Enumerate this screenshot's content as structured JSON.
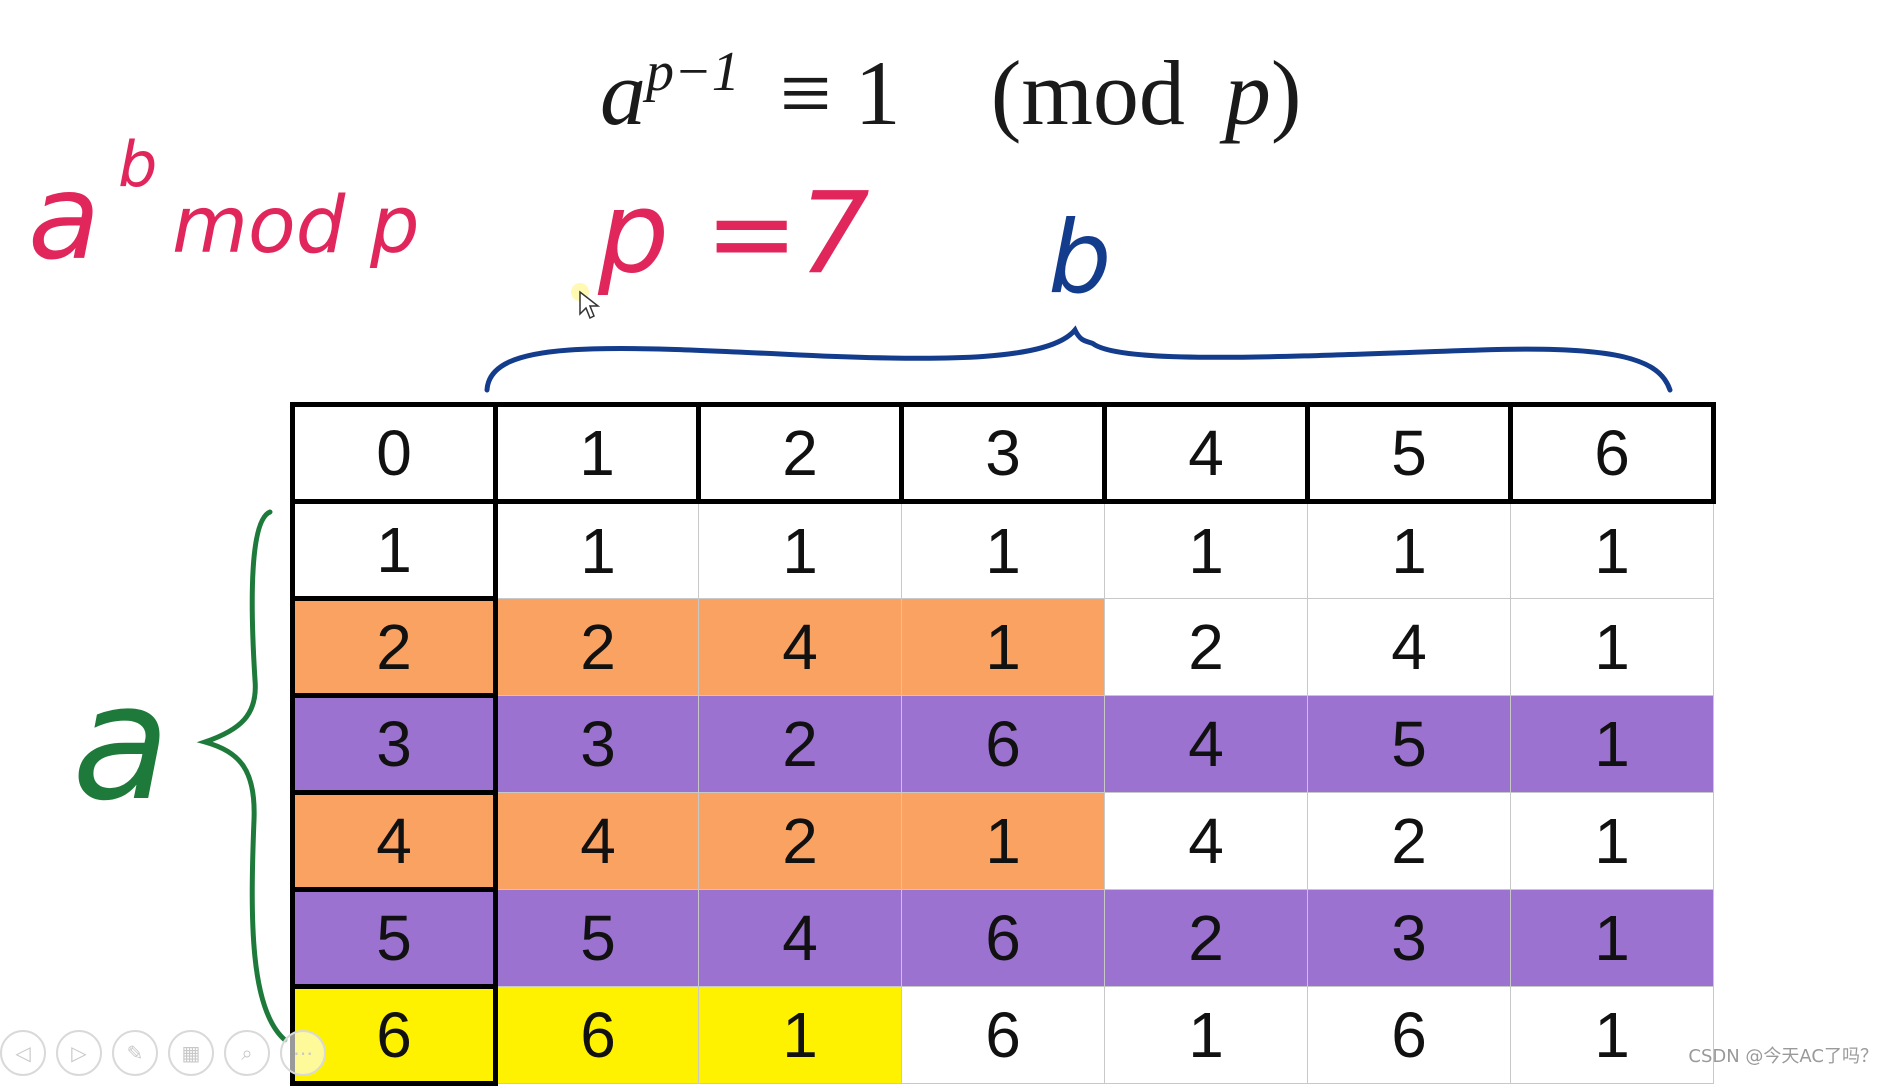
{
  "formula": {
    "base": "a",
    "exponent": "p−1",
    "relation": "≡ 1",
    "modulus": "(mod",
    "variable": "p",
    "close": ")"
  },
  "annotations": {
    "expression": "a^b mod p",
    "expression_base": "a",
    "expression_exp": "b",
    "expression_rest": "mod p",
    "prime": "p =7",
    "column_axis_label": "b",
    "row_axis_label": "a",
    "colors": {
      "expression": "#e0265a",
      "column_axis": "#143c8c",
      "row_axis": "#1e7a3a"
    }
  },
  "table": {
    "header": [
      "0",
      "1",
      "2",
      "3",
      "4",
      "5",
      "6"
    ],
    "rows": [
      {
        "values": [
          "1",
          "1",
          "1",
          "1",
          "1",
          "1",
          "1"
        ],
        "fills": [
          "white",
          "white",
          "white",
          "white",
          "white",
          "white",
          "white"
        ]
      },
      {
        "values": [
          "2",
          "2",
          "4",
          "1",
          "2",
          "4",
          "1"
        ],
        "fills": [
          "orange",
          "orange",
          "orange",
          "orange",
          "white",
          "white",
          "white"
        ]
      },
      {
        "values": [
          "3",
          "3",
          "2",
          "6",
          "4",
          "5",
          "1"
        ],
        "fills": [
          "purple",
          "purple",
          "purple",
          "purple",
          "purple",
          "purple",
          "purple"
        ]
      },
      {
        "values": [
          "4",
          "4",
          "2",
          "1",
          "4",
          "2",
          "1"
        ],
        "fills": [
          "orange",
          "orange",
          "orange",
          "orange",
          "white",
          "white",
          "white"
        ]
      },
      {
        "values": [
          "5",
          "5",
          "4",
          "6",
          "2",
          "3",
          "1"
        ],
        "fills": [
          "purple",
          "purple",
          "purple",
          "purple",
          "purple",
          "purple",
          "purple"
        ]
      },
      {
        "values": [
          "6",
          "6",
          "1",
          "6",
          "1",
          "6",
          "1"
        ],
        "fills": [
          "yellow",
          "yellow",
          "yellow",
          "white",
          "white",
          "white",
          "white"
        ]
      }
    ],
    "fill_colors": {
      "orange": "#f9a262",
      "purple": "#9b72cf",
      "yellow": "#fff200",
      "white": "#ffffff"
    }
  },
  "toolbar": {
    "items": [
      {
        "name": "prev-icon",
        "glyph": "◁"
      },
      {
        "name": "next-icon",
        "glyph": "▷"
      },
      {
        "name": "pen-icon",
        "glyph": "✎"
      },
      {
        "name": "slides-icon",
        "glyph": "▦"
      },
      {
        "name": "zoom-icon",
        "glyph": "⌕"
      },
      {
        "name": "more-icon",
        "glyph": "⋯"
      }
    ]
  },
  "watermark": "CSDN @今天AC了吗？"
}
